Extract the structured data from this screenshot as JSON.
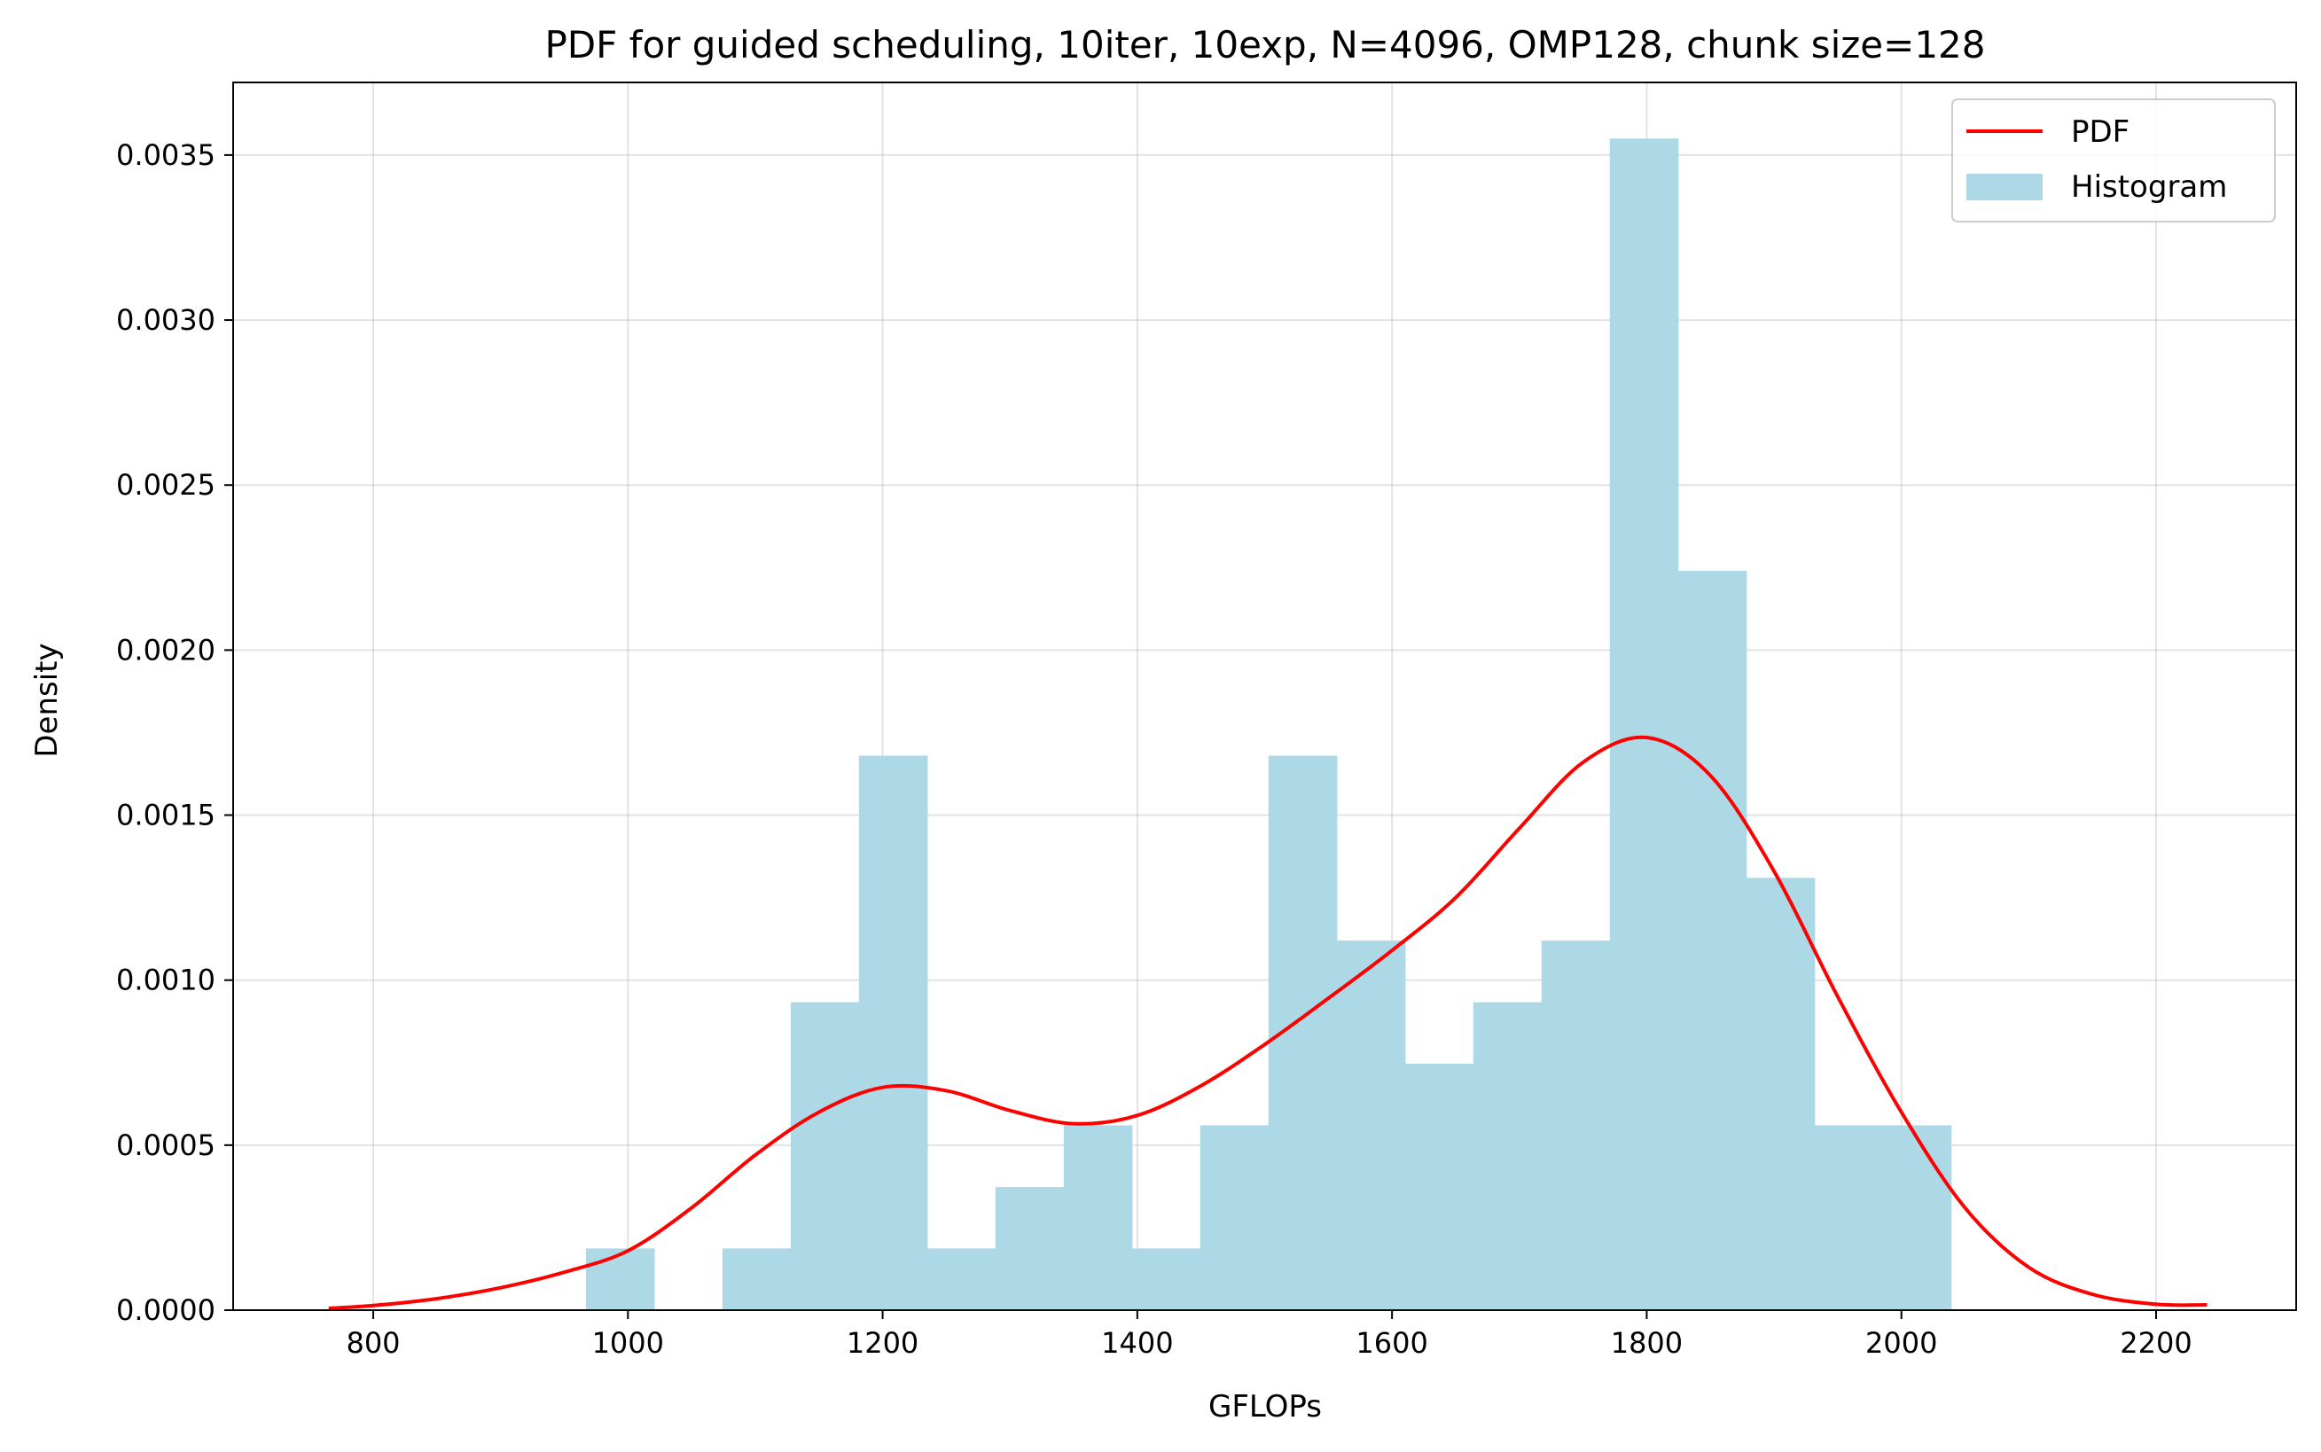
{
  "chart_data": {
    "type": "bar",
    "title": "PDF for guided scheduling, 10iter, 10exp, N=4096, OMP128, chunk size=128",
    "xlabel": "GFLOPs",
    "ylabel": "Density",
    "xlim": [
      690,
      2310
    ],
    "ylim": [
      0,
      0.00372
    ],
    "xticks": [
      800,
      1000,
      1200,
      1400,
      1600,
      1800,
      2000,
      2200
    ],
    "xtick_labels": [
      "800",
      "1000",
      "1200",
      "1400",
      "1600",
      "1800",
      "2000",
      "2200"
    ],
    "yticks": [
      0,
      0.0005,
      0.001,
      0.0015,
      0.002,
      0.0025,
      0.003,
      0.0035
    ],
    "ytick_labels": [
      "0.0000",
      "0.0005",
      "0.0010",
      "0.0015",
      "0.0020",
      "0.0025",
      "0.0030",
      "0.0035"
    ],
    "grid": true,
    "legend_position": "top-right",
    "histogram": {
      "name": "Histogram",
      "color": "#add8e6",
      "bin_start": 967,
      "bin_width": 53.6,
      "values": [
        0.000187,
        0,
        0.000187,
        0.000933,
        0.00168,
        0.000187,
        0.000373,
        0.00056,
        0.000187,
        0.00056,
        0.00168,
        0.00112,
        0.000747,
        0.000933,
        0.00112,
        0.00355,
        0.00224,
        0.00131,
        0.00056,
        0.00056
      ]
    },
    "pdf": {
      "name": "PDF",
      "color": "#ff0000",
      "x": [
        765,
        800,
        850,
        900,
        950,
        1000,
        1050,
        1100,
        1150,
        1200,
        1250,
        1300,
        1350,
        1400,
        1450,
        1500,
        1550,
        1600,
        1650,
        1700,
        1750,
        1800,
        1850,
        1900,
        1950,
        2000,
        2050,
        2100,
        2150,
        2200,
        2240
      ],
      "y": [
        5.5e-06,
        1.4e-05,
        3.5e-05,
        6.8e-05,
        0.000115,
        0.00018,
        0.00031,
        0.00047,
        0.0006,
        0.000675,
        0.000665,
        0.000605,
        0.000565,
        0.00059,
        0.00068,
        0.000805,
        0.000945,
        0.00109,
        0.00125,
        0.00146,
        0.00166,
        0.001735,
        0.00162,
        0.00133,
        0.00095,
        0.0006,
        0.00031,
        0.00013,
        4.8e-05,
        1.8e-05,
        1.6e-05
      ]
    }
  }
}
